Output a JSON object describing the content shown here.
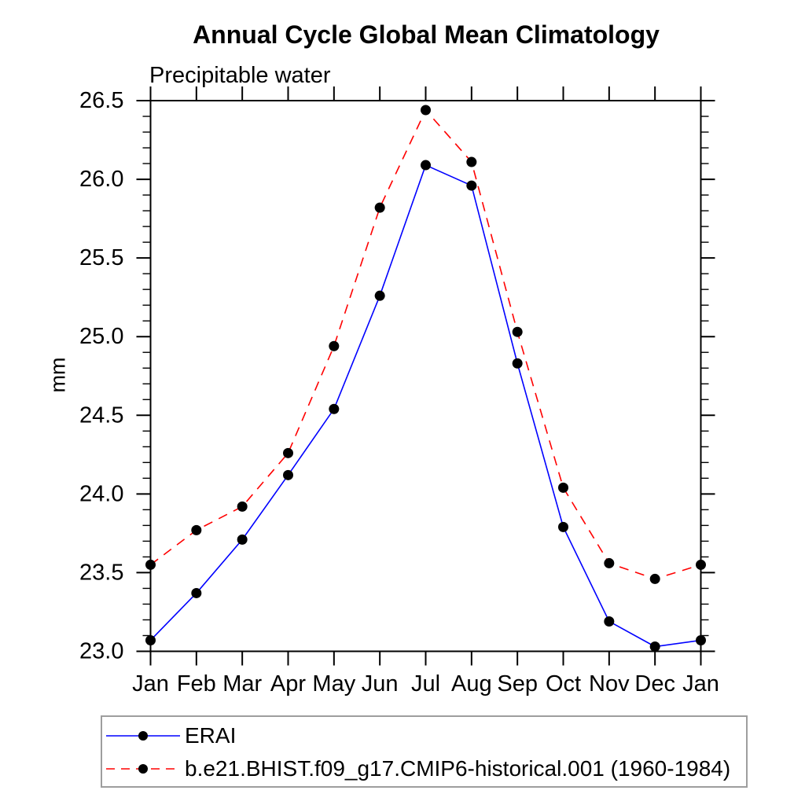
{
  "chart_data": {
    "type": "line",
    "title": "Annual Cycle Global Mean Climatology",
    "subtitle": "Precipitable water",
    "ylabel": "mm",
    "xlabel": "",
    "categories": [
      "Jan",
      "Feb",
      "Mar",
      "Apr",
      "May",
      "Jun",
      "Jul",
      "Aug",
      "Sep",
      "Oct",
      "Nov",
      "Dec",
      "Jan"
    ],
    "ylim": [
      23.0,
      26.5
    ],
    "y_major_step": 0.5,
    "y_minor_step": 0.1,
    "y_tick_decimals": 1,
    "grid": false,
    "legend_position": "bottom-left-box",
    "series": [
      {
        "name": "ERAI",
        "color": "#0000ff",
        "line_style": "solid",
        "marker": "filled-circle",
        "marker_color": "#000000",
        "values": [
          23.07,
          23.37,
          23.71,
          24.12,
          24.54,
          25.26,
          26.09,
          25.96,
          24.83,
          23.79,
          23.19,
          23.03,
          23.07
        ]
      },
      {
        "name": "b.e21.BHIST.f09_g17.CMIP6-historical.001 (1960-1984)",
        "color": "#ff0000",
        "line_style": "dashed",
        "marker": "filled-circle",
        "marker_color": "#000000",
        "values": [
          23.55,
          23.77,
          23.92,
          24.26,
          24.94,
          25.82,
          26.44,
          26.11,
          25.03,
          24.04,
          23.56,
          23.46,
          23.55
        ]
      }
    ],
    "axis_color": "#000000",
    "background_color": "#ffffff",
    "legend_border_color": "#9e9e9e"
  }
}
